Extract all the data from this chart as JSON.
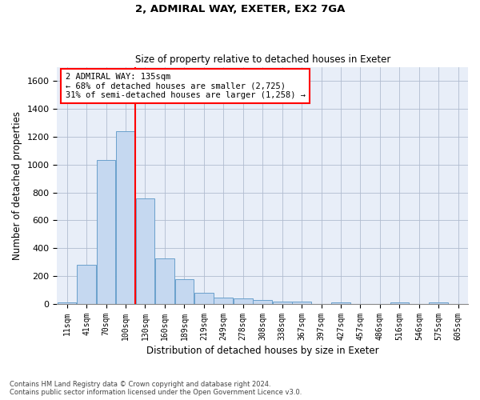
{
  "title_line1": "2, ADMIRAL WAY, EXETER, EX2 7GA",
  "title_line2": "Size of property relative to detached houses in Exeter",
  "xlabel": "Distribution of detached houses by size in Exeter",
  "ylabel": "Number of detached properties",
  "bin_labels": [
    "11sqm",
    "41sqm",
    "70sqm",
    "100sqm",
    "130sqm",
    "160sqm",
    "189sqm",
    "219sqm",
    "249sqm",
    "278sqm",
    "308sqm",
    "338sqm",
    "367sqm",
    "397sqm",
    "427sqm",
    "457sqm",
    "486sqm",
    "516sqm",
    "546sqm",
    "575sqm",
    "605sqm"
  ],
  "bar_heights": [
    10,
    280,
    1030,
    1240,
    755,
    330,
    180,
    80,
    45,
    40,
    30,
    20,
    15,
    0,
    10,
    0,
    0,
    10,
    0,
    10,
    0
  ],
  "bar_color": "#c5d8f0",
  "bar_edge_color": "#6aa0cc",
  "bar_width": 0.97,
  "vline_x": 3.5,
  "vline_color": "red",
  "annotation_text_line1": "2 ADMIRAL WAY: 135sqm",
  "annotation_text_line2": "← 68% of detached houses are smaller (2,725)",
  "annotation_text_line3": "31% of semi-detached houses are larger (1,258) →",
  "annotation_box_color": "red",
  "ylim": [
    0,
    1700
  ],
  "yticks": [
    0,
    200,
    400,
    600,
    800,
    1000,
    1200,
    1400,
    1600
  ],
  "footer_line1": "Contains HM Land Registry data © Crown copyright and database right 2024.",
  "footer_line2": "Contains public sector information licensed under the Open Government Licence v3.0.",
  "background_color": "#e8eef8",
  "plot_background": "#ffffff",
  "grid_color": "#b0bcd0"
}
